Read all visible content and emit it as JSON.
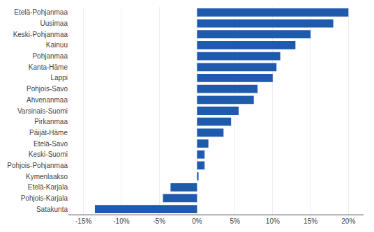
{
  "chart_data": {
    "type": "bar",
    "orientation": "horizontal",
    "categories": [
      "Satakunta",
      "Pohjois-Karjala",
      "Etelä-Karjala",
      "Kymenlaakso",
      "Pohjois-Pohjanmaa",
      "Keski-Suomi",
      "Etelä-Savo",
      "Päijät-Häme",
      "Pirkanmaa",
      "Varsinais-Suomi",
      "Ahvenanmaa",
      "Pohjois-Savo",
      "Lappi",
      "Kanta-Häme",
      "Pohjanmaa",
      "Kainuu",
      "Keski-Pohjanmaa",
      "Uusimaa",
      "Etelä-Pohjanmaa"
    ],
    "values": [
      -13.5,
      -4.5,
      -3.5,
      0.2,
      1.0,
      1.0,
      1.5,
      3.5,
      4.5,
      5.5,
      7.5,
      8.0,
      10.0,
      10.5,
      11.0,
      13.0,
      15.0,
      18.0,
      20.0
    ],
    "color": "#1F5BAD",
    "xlim": [
      -17,
      22
    ],
    "xticks": [
      {
        "value": -15,
        "label": "-15%"
      },
      {
        "value": -10,
        "label": "-10%"
      },
      {
        "value": -5,
        "label": "-5%"
      },
      {
        "value": 0,
        "label": "0%"
      },
      {
        "value": 5,
        "label": "5%"
      },
      {
        "value": 10,
        "label": "10%"
      },
      {
        "value": 15,
        "label": "15%"
      },
      {
        "value": 20,
        "label": "20%"
      }
    ],
    "grid": true
  }
}
